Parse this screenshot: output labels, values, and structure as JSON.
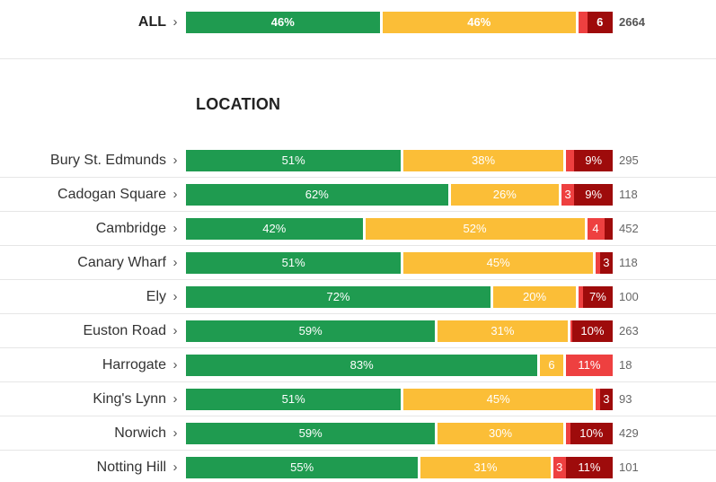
{
  "chart_data": {
    "type": "bar",
    "stacked": true,
    "orientation": "horizontal",
    "percent_scale": true,
    "colors": [
      "#1f9b50",
      "#fbbe37",
      "#ee4040",
      "#9e0b0b"
    ],
    "all": {
      "label": "ALL",
      "values": [
        46,
        46,
        2,
        6
      ],
      "segment_labels": [
        "46%",
        "46%",
        "",
        "6"
      ],
      "count": "2664"
    },
    "section_title": "LOCATION",
    "rows": [
      {
        "label": "Bury St. Edmunds",
        "values": [
          51,
          38,
          2,
          9
        ],
        "segment_labels": [
          "51%",
          "38%",
          "",
          "9%"
        ],
        "count": "295"
      },
      {
        "label": "Cadogan Square",
        "values": [
          62,
          26,
          3,
          9
        ],
        "segment_labels": [
          "62%",
          "26%",
          "3",
          "9%"
        ],
        "count": "118"
      },
      {
        "label": "Cambridge",
        "values": [
          42,
          52,
          4,
          2
        ],
        "segment_labels": [
          "42%",
          "52%",
          "4",
          ""
        ],
        "count": "452"
      },
      {
        "label": "Canary Wharf",
        "values": [
          51,
          45,
          1,
          3
        ],
        "segment_labels": [
          "51%",
          "45%",
          "",
          "3"
        ],
        "count": "118"
      },
      {
        "label": "Ely",
        "values": [
          72,
          20,
          1,
          7
        ],
        "segment_labels": [
          "72%",
          "20%",
          "",
          "7%"
        ],
        "count": "100"
      },
      {
        "label": "Euston Road",
        "values": [
          59,
          31,
          0.5,
          9.5
        ],
        "segment_labels": [
          "59%",
          "31%",
          "",
          "10%"
        ],
        "count": "263"
      },
      {
        "label": "Harrogate",
        "values": [
          83,
          6,
          11,
          0
        ],
        "segment_labels": [
          "83%",
          "6",
          "11%",
          ""
        ],
        "count": "18"
      },
      {
        "label": "King's Lynn",
        "values": [
          51,
          45,
          1,
          3
        ],
        "segment_labels": [
          "51%",
          "45%",
          "",
          "3"
        ],
        "count": "93"
      },
      {
        "label": "Norwich",
        "values": [
          59,
          30,
          1,
          10
        ],
        "segment_labels": [
          "59%",
          "30%",
          "",
          "10%"
        ],
        "count": "429"
      },
      {
        "label": "Notting Hill",
        "values": [
          55,
          31,
          3,
          11
        ],
        "segment_labels": [
          "55%",
          "31%",
          "3",
          "11%"
        ],
        "count": "101"
      }
    ]
  }
}
